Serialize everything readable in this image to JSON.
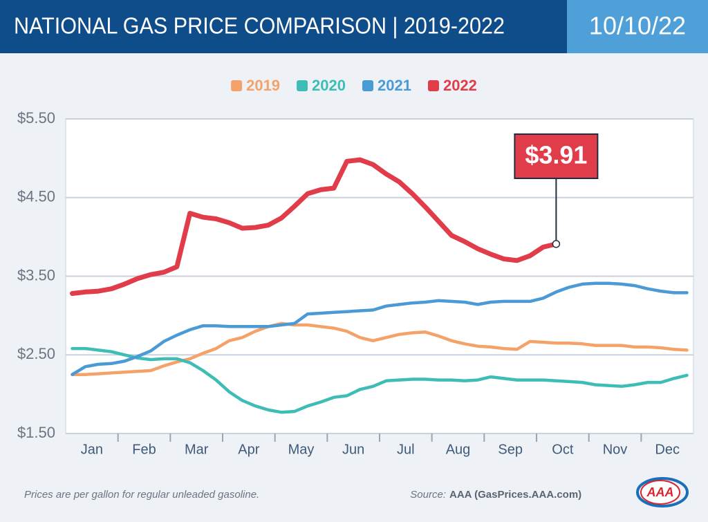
{
  "header": {
    "title": "NATIONAL GAS PRICE COMPARISON | 2019-2022",
    "date": "10/10/22"
  },
  "chart_data": {
    "type": "line",
    "categories": [
      null,
      "Jan",
      null,
      null,
      null,
      "Feb",
      null,
      null,
      null,
      "Mar",
      null,
      null,
      null,
      "Apr",
      null,
      null,
      null,
      "May",
      null,
      null,
      null,
      "Jun",
      null,
      null,
      null,
      "Jul",
      null,
      null,
      null,
      "Aug",
      null,
      null,
      null,
      "Sep",
      null,
      null,
      null,
      "Oct",
      null,
      null,
      null,
      "Nov",
      null,
      null,
      null,
      "Dec",
      null,
      null
    ],
    "series": [
      {
        "name": "2019",
        "color": "#f4a26a",
        "values": [
          2.25,
          2.25,
          2.26,
          2.27,
          2.28,
          2.29,
          2.3,
          2.36,
          2.41,
          2.45,
          2.52,
          2.58,
          2.68,
          2.72,
          2.8,
          2.86,
          2.9,
          2.88,
          2.88,
          2.86,
          2.84,
          2.8,
          2.72,
          2.68,
          2.72,
          2.76,
          2.78,
          2.79,
          2.74,
          2.68,
          2.64,
          2.61,
          2.6,
          2.58,
          2.57,
          2.67,
          2.66,
          2.65,
          2.65,
          2.64,
          2.62,
          2.62,
          2.62,
          2.6,
          2.6,
          2.59,
          2.57,
          2.56
        ]
      },
      {
        "name": "2020",
        "color": "#3dbdb5",
        "values": [
          2.58,
          2.58,
          2.56,
          2.54,
          2.5,
          2.46,
          2.44,
          2.45,
          2.45,
          2.4,
          2.3,
          2.18,
          2.03,
          1.92,
          1.85,
          1.8,
          1.77,
          1.78,
          1.85,
          1.9,
          1.96,
          1.98,
          2.06,
          2.1,
          2.17,
          2.18,
          2.19,
          2.19,
          2.18,
          2.18,
          2.17,
          2.18,
          2.22,
          2.2,
          2.18,
          2.18,
          2.18,
          2.17,
          2.16,
          2.15,
          2.12,
          2.11,
          2.1,
          2.12,
          2.15,
          2.15,
          2.2,
          2.24
        ]
      },
      {
        "name": "2021",
        "color": "#4a9ad6",
        "values": [
          2.25,
          2.35,
          2.38,
          2.39,
          2.42,
          2.48,
          2.55,
          2.67,
          2.75,
          2.82,
          2.87,
          2.87,
          2.86,
          2.86,
          2.86,
          2.86,
          2.88,
          2.9,
          3.02,
          3.03,
          3.04,
          3.05,
          3.06,
          3.07,
          3.12,
          3.14,
          3.16,
          3.17,
          3.19,
          3.18,
          3.17,
          3.14,
          3.17,
          3.18,
          3.18,
          3.18,
          3.22,
          3.3,
          3.36,
          3.4,
          3.41,
          3.41,
          3.4,
          3.38,
          3.34,
          3.31,
          3.29,
          3.29
        ]
      },
      {
        "name": "2022",
        "color": "#e03c4a",
        "values": [
          3.28,
          3.3,
          3.31,
          3.34,
          3.4,
          3.47,
          3.52,
          3.55,
          3.62,
          4.3,
          4.25,
          4.23,
          4.18,
          4.11,
          4.12,
          4.15,
          4.24,
          4.39,
          4.55,
          4.6,
          4.62,
          4.96,
          4.98,
          4.92,
          4.8,
          4.7,
          4.55,
          4.38,
          4.2,
          4.02,
          3.94,
          3.85,
          3.78,
          3.72,
          3.7,
          3.76,
          3.87,
          3.91,
          null,
          null,
          null,
          null,
          null,
          null,
          null,
          null,
          null,
          null
        ],
        "value_labels": [
          null,
          null,
          null,
          null,
          null,
          null,
          null,
          null,
          null,
          null,
          null,
          null,
          null,
          null,
          null,
          null,
          null,
          null,
          null,
          null,
          null,
          null,
          null,
          null,
          null,
          null,
          null,
          null,
          null,
          null,
          null,
          null,
          null,
          null,
          null,
          null,
          null,
          "$3.91",
          null,
          null,
          null,
          null,
          null,
          null,
          null,
          null,
          null,
          null
        ]
      }
    ],
    "ylim": [
      1.5,
      5.5
    ],
    "yticks": [
      {
        "value": 1.5,
        "label": "$1.50"
      },
      {
        "value": 2.5,
        "label": "$2.50"
      },
      {
        "value": 3.5,
        "label": "$3.50"
      },
      {
        "value": 4.5,
        "label": "$4.50"
      },
      {
        "value": 5.5,
        "label": "$5.50"
      }
    ],
    "grid": true,
    "legend": "top"
  },
  "footer": {
    "note": "Prices are per gallon for regular unleaded gasoline.",
    "source_label": "Source:",
    "source": "AAA (GasPrices.AAA.com)",
    "logo": "AAA"
  }
}
